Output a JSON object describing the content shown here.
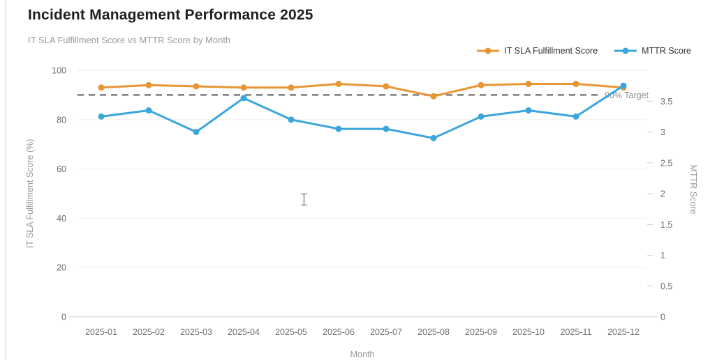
{
  "header": {
    "title": "Incident Management Performance 2025",
    "subtitle": "IT SLA Fulfillment Score vs MTTR Score by Month"
  },
  "legend": [
    {
      "label": "IT SLA Fulfillment Score",
      "color": "#E89535"
    },
    {
      "label": "MTTR Score",
      "color": "#3AA6DB"
    }
  ],
  "chart_data": {
    "type": "line",
    "categories": [
      "2025-01",
      "2025-02",
      "2025-03",
      "2025-04",
      "2025-05",
      "2025-06",
      "2025-07",
      "2025-08",
      "2025-09",
      "2025-10",
      "2025-11",
      "2025-12"
    ],
    "series": [
      {
        "name": "IT SLA Fulfillment Score",
        "axis": "left",
        "color": "#E89535",
        "values": [
          93,
          94,
          93.5,
          93,
          93,
          94.5,
          93.5,
          89.5,
          94,
          94.5,
          94.5,
          93
        ]
      },
      {
        "name": "MTTR Score",
        "axis": "right",
        "color": "#3AA6DB",
        "values": [
          3.25,
          3.35,
          3.0,
          3.55,
          3.2,
          3.05,
          3.05,
          2.9,
          3.25,
          3.35,
          3.25,
          3.75
        ]
      }
    ],
    "xlabel": "Month",
    "left_axis": {
      "label": "IT SLA Fulfillment Score (%)",
      "min": 0,
      "max": 100,
      "ticks": [
        0,
        20,
        40,
        60,
        80,
        100
      ],
      "tick_labels": [
        "0",
        "20",
        "40",
        "60",
        "80",
        "100"
      ]
    },
    "right_axis": {
      "label": "MTTR Score",
      "min": 0,
      "max": 4,
      "ticks": [
        0,
        0.5,
        1,
        1.5,
        2,
        2.5,
        3,
        3.5
      ],
      "tick_labels": [
        "0",
        "0.5",
        "1",
        "1.5",
        "2",
        "2.5",
        "3",
        "3.5"
      ]
    },
    "target_line": {
      "value": 90,
      "label": "90% Target",
      "color": "#7c7c7c",
      "label_color": "#8c8c8c"
    },
    "grid": true,
    "legend_position": "top-right"
  },
  "colors": {
    "grid_line": "#f1f1f1",
    "grid_line_top": "#e7e7e7",
    "axis_line": "#cccccc",
    "tick_text": "#6e6e6e",
    "axis_title": "#999999"
  },
  "cursor": {
    "type": "text-ibeam"
  }
}
